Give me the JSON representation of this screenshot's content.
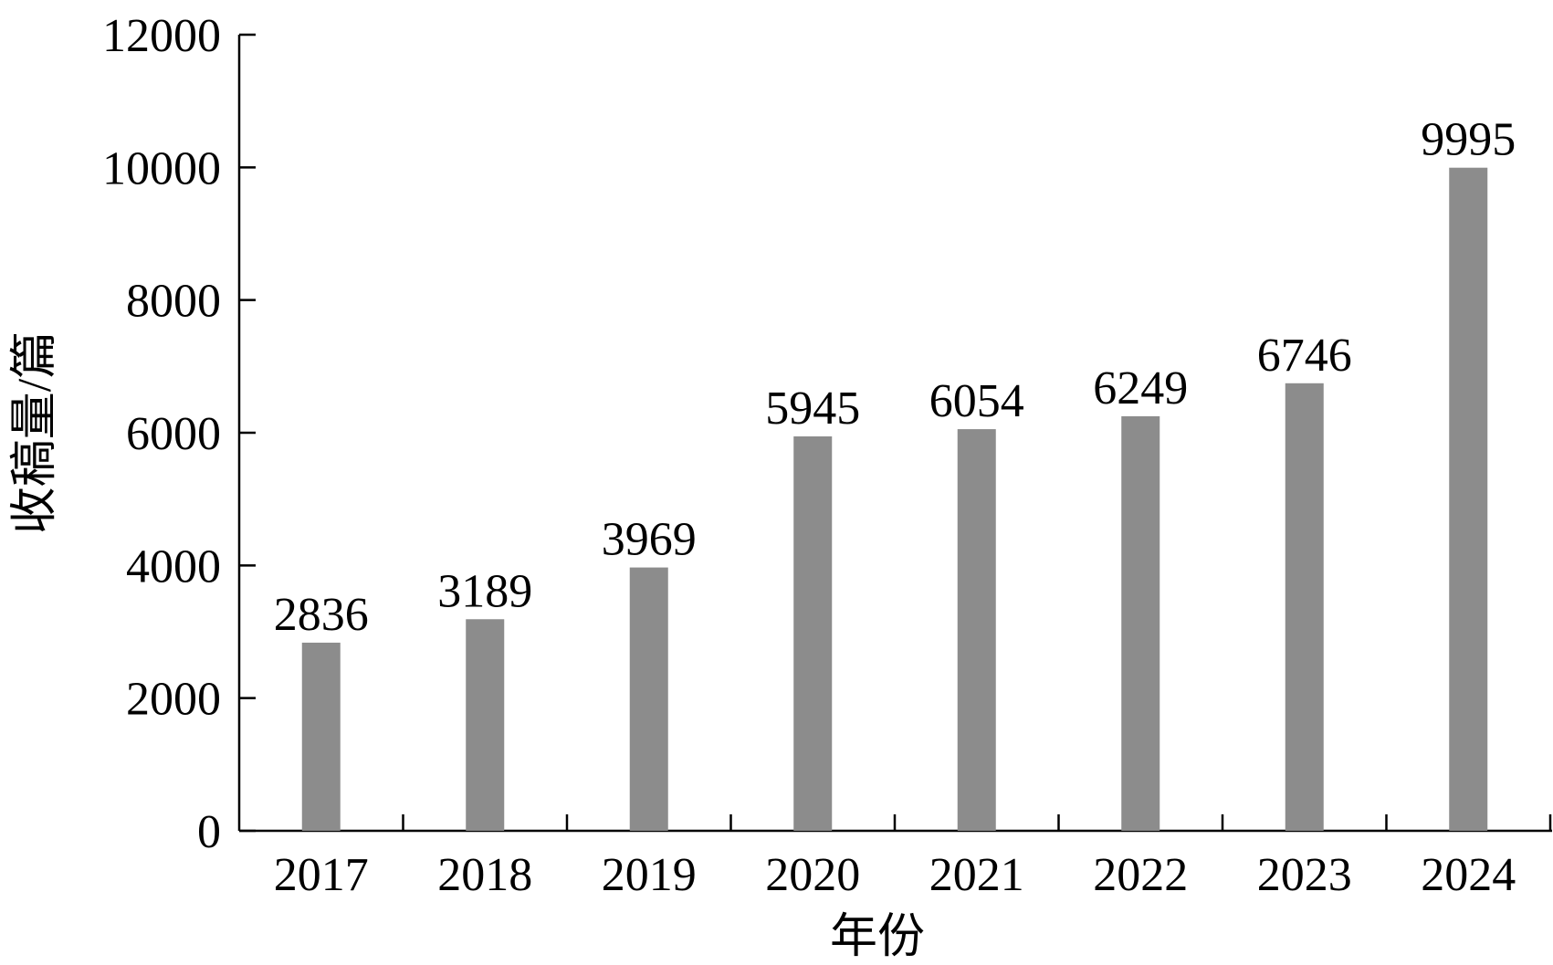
{
  "chart_data": {
    "type": "bar",
    "categories": [
      "2017",
      "2018",
      "2019",
      "2020",
      "2021",
      "2022",
      "2023",
      "2024"
    ],
    "values": [
      2836,
      3189,
      3969,
      5945,
      6054,
      6249,
      6746,
      9995
    ],
    "data_labels": [
      "2836",
      "3189",
      "3969",
      "5945",
      "6054",
      "6249",
      "6746",
      "9995"
    ],
    "xlabel": "年份",
    "ylabel": "收稿量/篇",
    "ylim": [
      0,
      12000
    ],
    "yticks": [
      0,
      2000,
      4000,
      6000,
      8000,
      10000,
      12000
    ],
    "ytick_labels": [
      "0",
      "2000",
      "4000",
      "6000",
      "8000",
      "10000",
      "12000"
    ],
    "grid": false,
    "legend": "none",
    "bar_color": "#8c8c8c"
  }
}
